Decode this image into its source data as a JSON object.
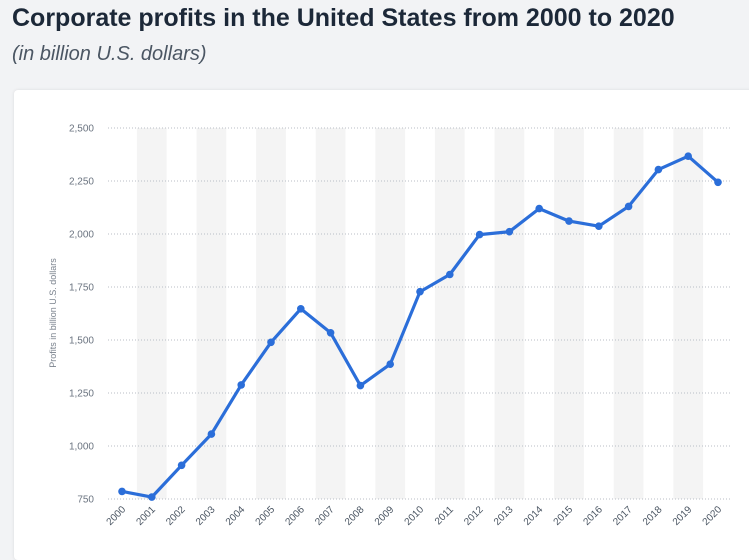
{
  "title": "Corporate profits in the United States from 2000 to 2020",
  "subtitle": "(in billion U.S. dollars)",
  "chart_data": {
    "type": "line",
    "ylabel": "Profits in billion U.S. dollars",
    "xlabel": "",
    "ylim": [
      750,
      2500
    ],
    "yticks": [
      750,
      1000,
      1250,
      1500,
      1750,
      2000,
      2250,
      2500
    ],
    "ytick_labels": [
      "750",
      "1,000",
      "1,250",
      "1,500",
      "1,750",
      "2,000",
      "2,250",
      "2,500"
    ],
    "categories": [
      "2000",
      "2001",
      "2002",
      "2003",
      "2004",
      "2005",
      "2006",
      "2007",
      "2008",
      "2009",
      "2010",
      "2011",
      "2012",
      "2013",
      "2014",
      "2015",
      "2016",
      "2017",
      "2018",
      "2019",
      "2020"
    ],
    "values": [
      786,
      759,
      909,
      1056,
      1288,
      1489,
      1647,
      1534,
      1285,
      1386,
      1728,
      1809,
      1997,
      2011,
      2120,
      2061,
      2037,
      2130,
      2304,
      2367,
      2244
    ],
    "grid": true,
    "colors": {
      "line": "#2b6ed9",
      "band": "#f4f4f4",
      "grid": "#b9bec6"
    }
  }
}
